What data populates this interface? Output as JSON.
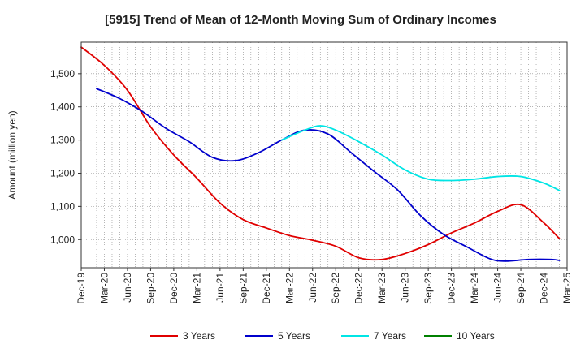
{
  "chart_data": {
    "type": "line",
    "title": "[5915]  Trend of Mean of 12-Month Moving Sum of Ordinary Incomes",
    "xlabel": "",
    "ylabel": "Amount (million yen)",
    "ylim": [
      915,
      1595
    ],
    "yticks": [
      1000,
      1100,
      1200,
      1300,
      1400,
      1500
    ],
    "ytick_labels": [
      "1,000",
      "1,100",
      "1,200",
      "1,300",
      "1,400",
      "1,500"
    ],
    "x_tick_labels": [
      "Dec-19",
      "Mar-20",
      "Jun-20",
      "Sep-20",
      "Dec-20",
      "Mar-21",
      "Jun-21",
      "Sep-21",
      "Dec-21",
      "Mar-22",
      "Jun-22",
      "Sep-22",
      "Dec-22",
      "Mar-23",
      "Jun-23",
      "Sep-23",
      "Dec-23",
      "Mar-24",
      "Jun-24",
      "Sep-24",
      "Dec-24",
      "Mar-25"
    ],
    "x_months_total": 63,
    "grid": true,
    "legend_position": "bottom",
    "series": [
      {
        "name": "3 Years",
        "color": "#e00000",
        "points": [
          [
            0,
            1580
          ],
          [
            3,
            1525
          ],
          [
            6,
            1450
          ],
          [
            9,
            1340
          ],
          [
            12,
            1255
          ],
          [
            15,
            1185
          ],
          [
            18,
            1110
          ],
          [
            21,
            1060
          ],
          [
            24,
            1035
          ],
          [
            27,
            1012
          ],
          [
            30,
            998
          ],
          [
            33,
            980
          ],
          [
            36,
            945
          ],
          [
            39,
            940
          ],
          [
            42,
            958
          ],
          [
            45,
            985
          ],
          [
            48,
            1020
          ],
          [
            51,
            1050
          ],
          [
            54,
            1085
          ],
          [
            57,
            1105
          ],
          [
            60,
            1050
          ],
          [
            62,
            1003
          ]
        ]
      },
      {
        "name": "5 Years",
        "color": "#0000cc",
        "points": [
          [
            2,
            1455
          ],
          [
            5,
            1425
          ],
          [
            8,
            1385
          ],
          [
            11,
            1335
          ],
          [
            14,
            1295
          ],
          [
            17,
            1248
          ],
          [
            20,
            1238
          ],
          [
            23,
            1262
          ],
          [
            26,
            1300
          ],
          [
            29,
            1330
          ],
          [
            32,
            1318
          ],
          [
            35,
            1262
          ],
          [
            38,
            1205
          ],
          [
            41,
            1150
          ],
          [
            44,
            1072
          ],
          [
            47,
            1015
          ],
          [
            50,
            978
          ],
          [
            53,
            942
          ],
          [
            55,
            935
          ],
          [
            58,
            940
          ],
          [
            61,
            940
          ],
          [
            62,
            937
          ]
        ]
      },
      {
        "name": "7 Years",
        "color": "#00e5e5",
        "points": [
          [
            26,
            1300
          ],
          [
            29,
            1330
          ],
          [
            31,
            1343
          ],
          [
            33,
            1330
          ],
          [
            36,
            1295
          ],
          [
            39,
            1255
          ],
          [
            42,
            1210
          ],
          [
            45,
            1182
          ],
          [
            48,
            1178
          ],
          [
            51,
            1182
          ],
          [
            54,
            1190
          ],
          [
            57,
            1190
          ],
          [
            60,
            1170
          ],
          [
            62,
            1148
          ]
        ]
      },
      {
        "name": "10 Years",
        "color": "#008000",
        "points": []
      }
    ]
  }
}
